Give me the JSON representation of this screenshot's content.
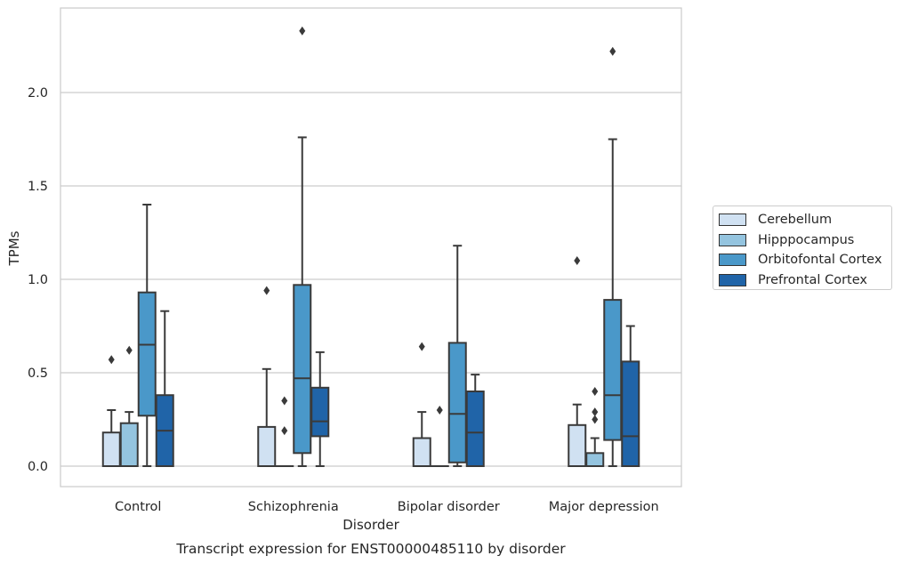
{
  "chart_data": {
    "type": "box",
    "title": "Transcript expression for ENST00000485110 by disorder",
    "xlabel": "Disorder",
    "ylabel": "TPMs",
    "ylim": [
      -0.11,
      2.47
    ],
    "yticks": [
      "0.0",
      "0.5",
      "1.0",
      "1.5",
      "2.0"
    ],
    "grid": true,
    "legend_position": "right",
    "categories": [
      "Control",
      "Schizophrenia",
      "Bipolar disorder",
      "Major depression"
    ],
    "series": [
      {
        "name": "Cerebellum",
        "color": "#d0e1f2",
        "boxes": [
          {
            "q1": 0,
            "median": 0,
            "q3": 0.18,
            "whisker_low": 0,
            "whisker_high": 0.3,
            "outliers": [
              0.57
            ]
          },
          {
            "q1": 0,
            "median": 0,
            "q3": 0.21,
            "whisker_low": 0,
            "whisker_high": 0.52,
            "outliers": [
              0.94
            ]
          },
          {
            "q1": 0,
            "median": 0,
            "q3": 0.15,
            "whisker_low": 0,
            "whisker_high": 0.29,
            "outliers": [
              0.64
            ]
          },
          {
            "q1": 0,
            "median": 0,
            "q3": 0.22,
            "whisker_low": 0,
            "whisker_high": 0.33,
            "outliers": [
              1.1
            ]
          }
        ]
      },
      {
        "name": "Hipppocampus",
        "color": "#94c4df",
        "boxes": [
          {
            "q1": 0,
            "median": 0,
            "q3": 0.23,
            "whisker_low": 0,
            "whisker_high": 0.29,
            "outliers": [
              0.62
            ]
          },
          {
            "q1": 0,
            "median": 0,
            "q3": 0,
            "whisker_low": 0,
            "whisker_high": 0,
            "outliers": [
              0.35,
              0.19
            ]
          },
          {
            "q1": 0,
            "median": 0,
            "q3": 0,
            "whisker_low": 0,
            "whisker_high": 0,
            "outliers": [
              0.3
            ]
          },
          {
            "q1": 0,
            "median": 0,
            "q3": 0.07,
            "whisker_low": 0,
            "whisker_high": 0.15,
            "outliers": [
              0.4,
              0.29,
              0.25
            ]
          }
        ]
      },
      {
        "name": "Orbitofontal Cortex",
        "color": "#4a98c9",
        "boxes": [
          {
            "q1": 0.27,
            "median": 0.65,
            "q3": 0.93,
            "whisker_low": 0,
            "whisker_high": 1.4,
            "outliers": []
          },
          {
            "q1": 0.07,
            "median": 0.47,
            "q3": 0.97,
            "whisker_low": 0,
            "whisker_high": 1.76,
            "outliers": [
              2.33
            ]
          },
          {
            "q1": 0.02,
            "median": 0.28,
            "q3": 0.66,
            "whisker_low": 0,
            "whisker_high": 1.18,
            "outliers": []
          },
          {
            "q1": 0.14,
            "median": 0.38,
            "q3": 0.89,
            "whisker_low": 0,
            "whisker_high": 1.75,
            "outliers": [
              2.22
            ]
          }
        ]
      },
      {
        "name": "Prefrontal Cortex",
        "color": "#2064a8",
        "boxes": [
          {
            "q1": 0,
            "median": 0.19,
            "q3": 0.38,
            "whisker_low": 0,
            "whisker_high": 0.83,
            "outliers": []
          },
          {
            "q1": 0.16,
            "median": 0.24,
            "q3": 0.42,
            "whisker_low": 0,
            "whisker_high": 0.61,
            "outliers": []
          },
          {
            "q1": 0,
            "median": 0.18,
            "q3": 0.4,
            "whisker_low": 0,
            "whisker_high": 0.49,
            "outliers": []
          },
          {
            "q1": 0,
            "median": 0.16,
            "q3": 0.56,
            "whisker_low": 0,
            "whisker_high": 0.75,
            "outliers": []
          }
        ]
      }
    ]
  }
}
